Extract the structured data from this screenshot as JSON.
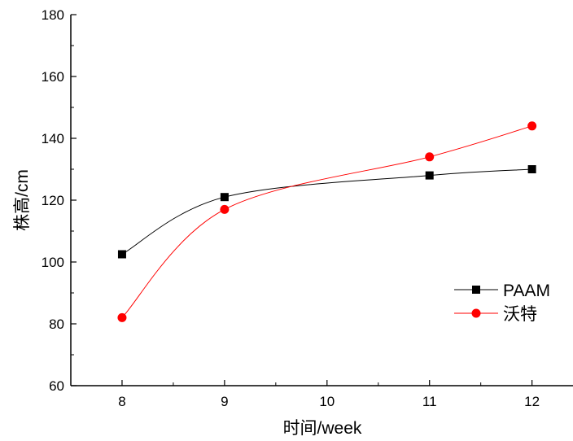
{
  "chart_data": {
    "type": "line",
    "title": "",
    "xlabel": "时间/week",
    "ylabel": "株高/cm",
    "xlim": [
      7.5,
      12.4
    ],
    "ylim": [
      60,
      180
    ],
    "x_ticks": [
      "8",
      "9",
      "10",
      "11",
      "12"
    ],
    "y_ticks": [
      "60",
      "80",
      "100",
      "120",
      "140",
      "160",
      "180"
    ],
    "grid": false,
    "smooth": true,
    "legend_position": "right",
    "series": [
      {
        "name": "PAAM",
        "marker": "square",
        "color": "#000000",
        "x": [
          8,
          9,
          11,
          12
        ],
        "y": [
          102.5,
          121,
          128,
          130
        ]
      },
      {
        "name": "沃特",
        "marker": "circle",
        "color": "#ff0000",
        "x": [
          8,
          9,
          11,
          12
        ],
        "y": [
          82,
          117,
          134,
          144
        ]
      }
    ]
  }
}
